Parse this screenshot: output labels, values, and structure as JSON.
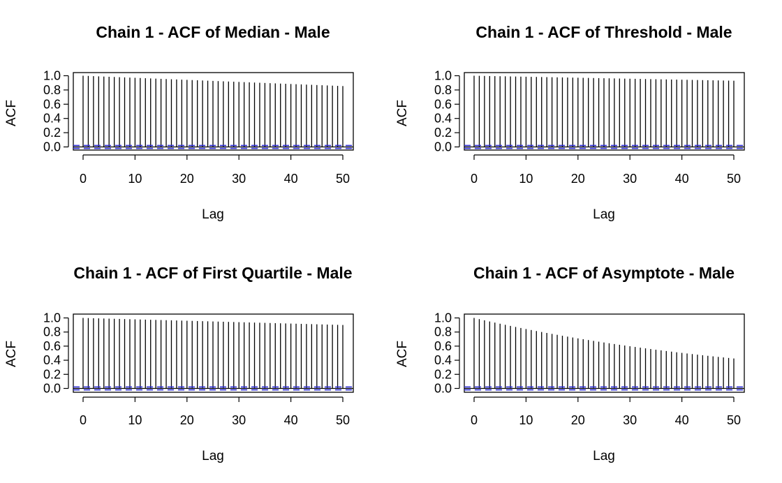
{
  "figure": {
    "colors": {
      "acf_line": "#000000",
      "confidence_band": "#2b2bd6",
      "frame": "#000000",
      "background": "#ffffff"
    }
  },
  "chart_data": [
    {
      "type": "bar",
      "title": "Chain 1 - ACF of Median - Male",
      "xlabel": "Lag",
      "ylabel": "ACF",
      "xlim": [
        0,
        50
      ],
      "ylim": [
        -0.05,
        1.05
      ],
      "xticks": [
        0,
        10,
        20,
        30,
        40,
        50
      ],
      "yticks": [
        0.0,
        0.2,
        0.4,
        0.6,
        0.8,
        1.0
      ],
      "confidence_band": [
        -0.02,
        0.02
      ],
      "lag_range": [
        0,
        50
      ],
      "acf_start": 1.0,
      "acf_end": 0.855,
      "decay": "linear"
    },
    {
      "type": "bar",
      "title": "Chain 1 - ACF of Threshold - Male",
      "xlabel": "Lag",
      "ylabel": "ACF",
      "xlim": [
        0,
        50
      ],
      "ylim": [
        -0.05,
        1.05
      ],
      "xticks": [
        0,
        10,
        20,
        30,
        40,
        50
      ],
      "yticks": [
        0.0,
        0.2,
        0.4,
        0.6,
        0.8,
        1.0
      ],
      "confidence_band": [
        -0.02,
        0.02
      ],
      "lag_range": [
        0,
        50
      ],
      "acf_start": 1.0,
      "acf_end": 0.93,
      "decay": "linear"
    },
    {
      "type": "bar",
      "title": "Chain 1 - ACF of First Quartile - Male",
      "xlabel": "Lag",
      "ylabel": "ACF",
      "xlim": [
        0,
        50
      ],
      "ylim": [
        -0.05,
        1.05
      ],
      "xticks": [
        0,
        10,
        20,
        30,
        40,
        50
      ],
      "yticks": [
        0.0,
        0.2,
        0.4,
        0.6,
        0.8,
        1.0
      ],
      "confidence_band": [
        -0.02,
        0.02
      ],
      "lag_range": [
        0,
        50
      ],
      "acf_start": 1.0,
      "acf_end": 0.9,
      "decay": "linear"
    },
    {
      "type": "bar",
      "title": "Chain 1 - ACF of Asymptote - Male",
      "xlabel": "Lag",
      "ylabel": "ACF",
      "xlim": [
        0,
        50
      ],
      "ylim": [
        -0.05,
        1.05
      ],
      "xticks": [
        0,
        10,
        20,
        30,
        40,
        50
      ],
      "yticks": [
        0.0,
        0.2,
        0.4,
        0.6,
        0.8,
        1.0
      ],
      "confidence_band": [
        -0.02,
        0.02
      ],
      "lag_range": [
        0,
        50
      ],
      "acf_start": 1.0,
      "acf_end": 0.425,
      "decay": "exponential"
    }
  ]
}
